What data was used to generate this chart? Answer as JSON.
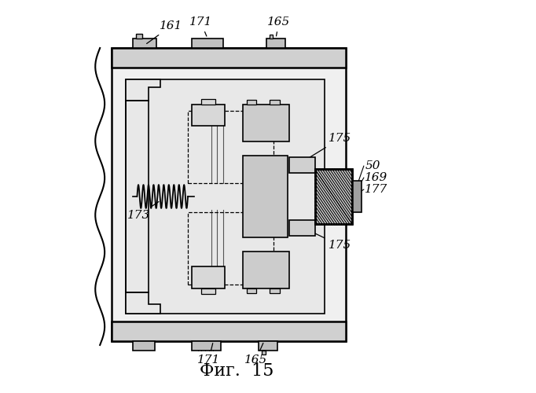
{
  "title": "Фиг.  15",
  "title_fontsize": 16,
  "background_color": "#ffffff",
  "line_color": "#000000"
}
